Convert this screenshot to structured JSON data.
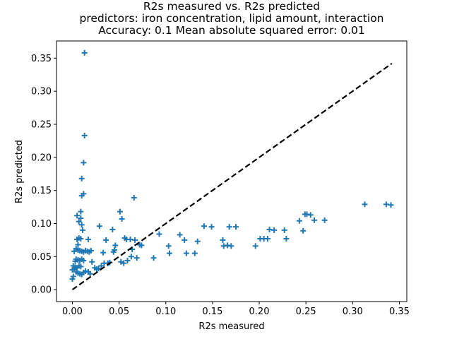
{
  "chart_data": {
    "type": "scatter",
    "title_lines": [
      "R2s measured vs. R2s predicted",
      "predictors: iron concentration, lipid amount, interaction",
      "Accuracy: 0.1 Mean absolute squared error: 0.01"
    ],
    "xlabel": "R2s measured",
    "ylabel": "R2s predicted",
    "xlim": [
      -0.017,
      0.358
    ],
    "ylim": [
      -0.018,
      0.376
    ],
    "xticks": [
      0.0,
      0.05,
      0.1,
      0.15,
      0.2,
      0.25,
      0.3,
      0.35
    ],
    "xtick_labels": [
      "0.00",
      "0.05",
      "0.10",
      "0.15",
      "0.20",
      "0.25",
      "0.30",
      "0.35"
    ],
    "yticks": [
      0.0,
      0.05,
      0.1,
      0.15,
      0.2,
      0.25,
      0.3,
      0.35
    ],
    "ytick_labels": [
      "0.00",
      "0.05",
      "0.10",
      "0.15",
      "0.20",
      "0.25",
      "0.30",
      "0.35"
    ],
    "grid": false,
    "marker": "+",
    "marker_color": "#1f77b4",
    "reference_line": {
      "x": [
        0.0,
        0.342
      ],
      "y": [
        0.0,
        0.342
      ],
      "color": "#000000",
      "style": "dashed"
    },
    "points": [
      [
        0.013,
        0.358
      ],
      [
        0.013,
        0.233
      ],
      [
        0.012,
        0.192
      ],
      [
        0.01,
        0.168
      ],
      [
        0.012,
        0.145
      ],
      [
        0.01,
        0.142
      ],
      [
        0.005,
        0.112
      ],
      [
        0.009,
        0.118
      ],
      [
        0.009,
        0.108
      ],
      [
        0.007,
        0.103
      ],
      [
        0.01,
        0.098
      ],
      [
        0.011,
        0.09
      ],
      [
        0.007,
        0.078
      ],
      [
        0.009,
        0.077
      ],
      [
        0.005,
        0.076
      ],
      [
        0.006,
        0.068
      ],
      [
        0.004,
        0.062
      ],
      [
        0.002,
        0.058
      ],
      [
        0.006,
        0.06
      ],
      [
        0.008,
        0.059
      ],
      [
        0.01,
        0.058
      ],
      [
        0.012,
        0.057
      ],
      [
        0.014,
        0.059
      ],
      [
        0.016,
        0.058
      ],
      [
        0.018,
        0.057
      ],
      [
        0.02,
        0.059
      ],
      [
        0.017,
        0.076
      ],
      [
        0.004,
        0.046
      ],
      [
        0.006,
        0.045
      ],
      [
        0.008,
        0.044
      ],
      [
        0.01,
        0.046
      ],
      [
        0.012,
        0.044
      ],
      [
        0.003,
        0.043
      ],
      [
        0.001,
        0.036
      ],
      [
        0.003,
        0.034
      ],
      [
        0.005,
        0.033
      ],
      [
        0.007,
        0.036
      ],
      [
        0.009,
        0.035
      ],
      [
        0.002,
        0.031
      ],
      [
        0.0,
        0.03
      ],
      [
        0.001,
        0.02
      ],
      [
        0.0,
        0.016
      ],
      [
        0.004,
        0.027
      ],
      [
        0.006,
        0.025
      ],
      [
        0.008,
        0.024
      ],
      [
        0.01,
        0.023
      ],
      [
        0.012,
        0.026
      ],
      [
        0.014,
        0.028
      ],
      [
        0.017,
        0.027
      ],
      [
        0.019,
        0.024
      ],
      [
        0.021,
        0.042
      ],
      [
        0.024,
        0.033
      ],
      [
        0.026,
        0.031
      ],
      [
        0.028,
        0.032
      ],
      [
        0.029,
        0.096
      ],
      [
        0.031,
        0.036
      ],
      [
        0.033,
        0.056
      ],
      [
        0.034,
        0.04
      ],
      [
        0.036,
        0.075
      ],
      [
        0.038,
        0.04
      ],
      [
        0.04,
        0.041
      ],
      [
        0.043,
        0.091
      ],
      [
        0.044,
        0.057
      ],
      [
        0.046,
        0.067
      ],
      [
        0.045,
        0.06
      ],
      [
        0.051,
        0.118
      ],
      [
        0.052,
        0.042
      ],
      [
        0.053,
        0.107
      ],
      [
        0.055,
        0.04
      ],
      [
        0.056,
        0.078
      ],
      [
        0.058,
        0.076
      ],
      [
        0.059,
        0.044
      ],
      [
        0.062,
        0.076
      ],
      [
        0.063,
        0.05
      ],
      [
        0.064,
        0.061
      ],
      [
        0.066,
        0.139
      ],
      [
        0.067,
        0.075
      ],
      [
        0.069,
        0.048
      ],
      [
        0.072,
        0.068
      ],
      [
        0.074,
        0.067
      ],
      [
        0.087,
        0.048
      ],
      [
        0.093,
        0.084
      ],
      [
        0.103,
        0.066
      ],
      [
        0.104,
        0.055
      ],
      [
        0.115,
        0.083
      ],
      [
        0.12,
        0.075
      ],
      [
        0.122,
        0.055
      ],
      [
        0.131,
        0.055
      ],
      [
        0.134,
        0.073
      ],
      [
        0.141,
        0.096
      ],
      [
        0.149,
        0.095
      ],
      [
        0.161,
        0.075
      ],
      [
        0.162,
        0.066
      ],
      [
        0.166,
        0.067
      ],
      [
        0.168,
        0.095
      ],
      [
        0.17,
        0.066
      ],
      [
        0.175,
        0.095
      ],
      [
        0.196,
        0.066
      ],
      [
        0.201,
        0.077
      ],
      [
        0.205,
        0.077
      ],
      [
        0.209,
        0.077
      ],
      [
        0.211,
        0.091
      ],
      [
        0.216,
        0.09
      ],
      [
        0.227,
        0.09
      ],
      [
        0.229,
        0.077
      ],
      [
        0.243,
        0.104
      ],
      [
        0.247,
        0.089
      ],
      [
        0.249,
        0.114
      ],
      [
        0.251,
        0.114
      ],
      [
        0.255,
        0.113
      ],
      [
        0.259,
        0.105
      ],
      [
        0.27,
        0.105
      ],
      [
        0.313,
        0.129
      ],
      [
        0.336,
        0.129
      ],
      [
        0.341,
        0.128
      ]
    ]
  }
}
